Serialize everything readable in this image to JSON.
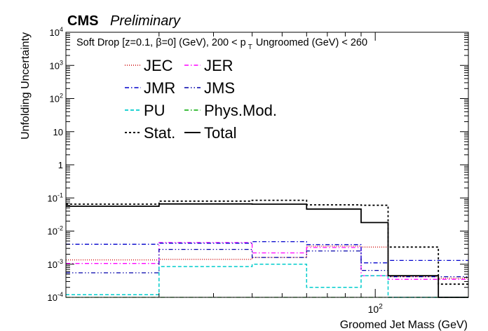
{
  "header": {
    "experiment": "CMS",
    "status": "Preliminary"
  },
  "chart_data": {
    "type": "line",
    "drawstyle": "step",
    "title": "",
    "annotation": "Soft Drop [z=0.1, β=0] (GeV), 200 < p_T Ungroomed (GeV) < 260",
    "xlabel": "Groomed Jet Mass (GeV)",
    "ylabel": "Unfolding Uncertainty",
    "xscale": "log",
    "yscale": "log",
    "xlim": [
      10,
      200
    ],
    "ylim": [
      0.0001,
      10000
    ],
    "x_tick_labels": [
      "10^2"
    ],
    "y_tick_labels": [
      "10^-4",
      "10^-3",
      "10^-2",
      "10^-1",
      "1",
      "10",
      "10^2",
      "10^3",
      "10^4"
    ],
    "grid": false,
    "legend_position": "top-left",
    "bin_edges": [
      10,
      20,
      40,
      60,
      90,
      110,
      160,
      200
    ],
    "series": [
      {
        "name": "JEC",
        "color": "#cc0000",
        "dash": "1,2",
        "width": 1.3,
        "values": [
          0.00135,
          0.0014,
          0.0016,
          0.0035,
          0.0033,
          0.00042,
          0.00038
        ]
      },
      {
        "name": "JER",
        "color": "#ff00ff",
        "dash": "6,3,1.5,3",
        "width": 1.3,
        "values": [
          0.00105,
          0.0045,
          0.0022,
          0.0032,
          0.00045,
          0.00035,
          0.00035
        ]
      },
      {
        "name": "JMR",
        "color": "#0000cc",
        "dash": "6,3,1.5,3",
        "width": 1.3,
        "values": [
          0.004,
          0.0043,
          0.0048,
          0.0039,
          0.0011,
          0.0013,
          0.0013
        ]
      },
      {
        "name": "JMS",
        "color": "#0000aa",
        "dash": "6,3,1.5,3,1.5,3",
        "width": 1.3,
        "values": [
          0.00055,
          0.0028,
          0.0016,
          0.0025,
          0.00065,
          0.00042,
          0.00042
        ]
      },
      {
        "name": "PU",
        "color": "#00cccc",
        "dash": "5,3",
        "width": 1.5,
        "values": [
          0.00012,
          0.00085,
          0.001,
          0.0002,
          0.00045,
          0.0001,
          0.0001
        ]
      },
      {
        "name": "Phys.Mod.",
        "color": "#00aa00",
        "dash": "6,3,1.5,3",
        "width": 1.3,
        "values": [
          0.0001,
          0.0001,
          0.0001,
          0.0001,
          0.0001,
          0.0001,
          0.0001
        ]
      },
      {
        "name": "Stat.",
        "color": "#000000",
        "dash": "3,3",
        "width": 1.8,
        "values": [
          0.065,
          0.08,
          0.085,
          0.062,
          0.06,
          0.0033,
          0.00025
        ]
      },
      {
        "name": "Total",
        "color": "#000000",
        "dash": "",
        "width": 1.8,
        "values": [
          0.056,
          0.066,
          0.065,
          0.046,
          0.018,
          0.00045,
          0.0001
        ]
      }
    ]
  }
}
